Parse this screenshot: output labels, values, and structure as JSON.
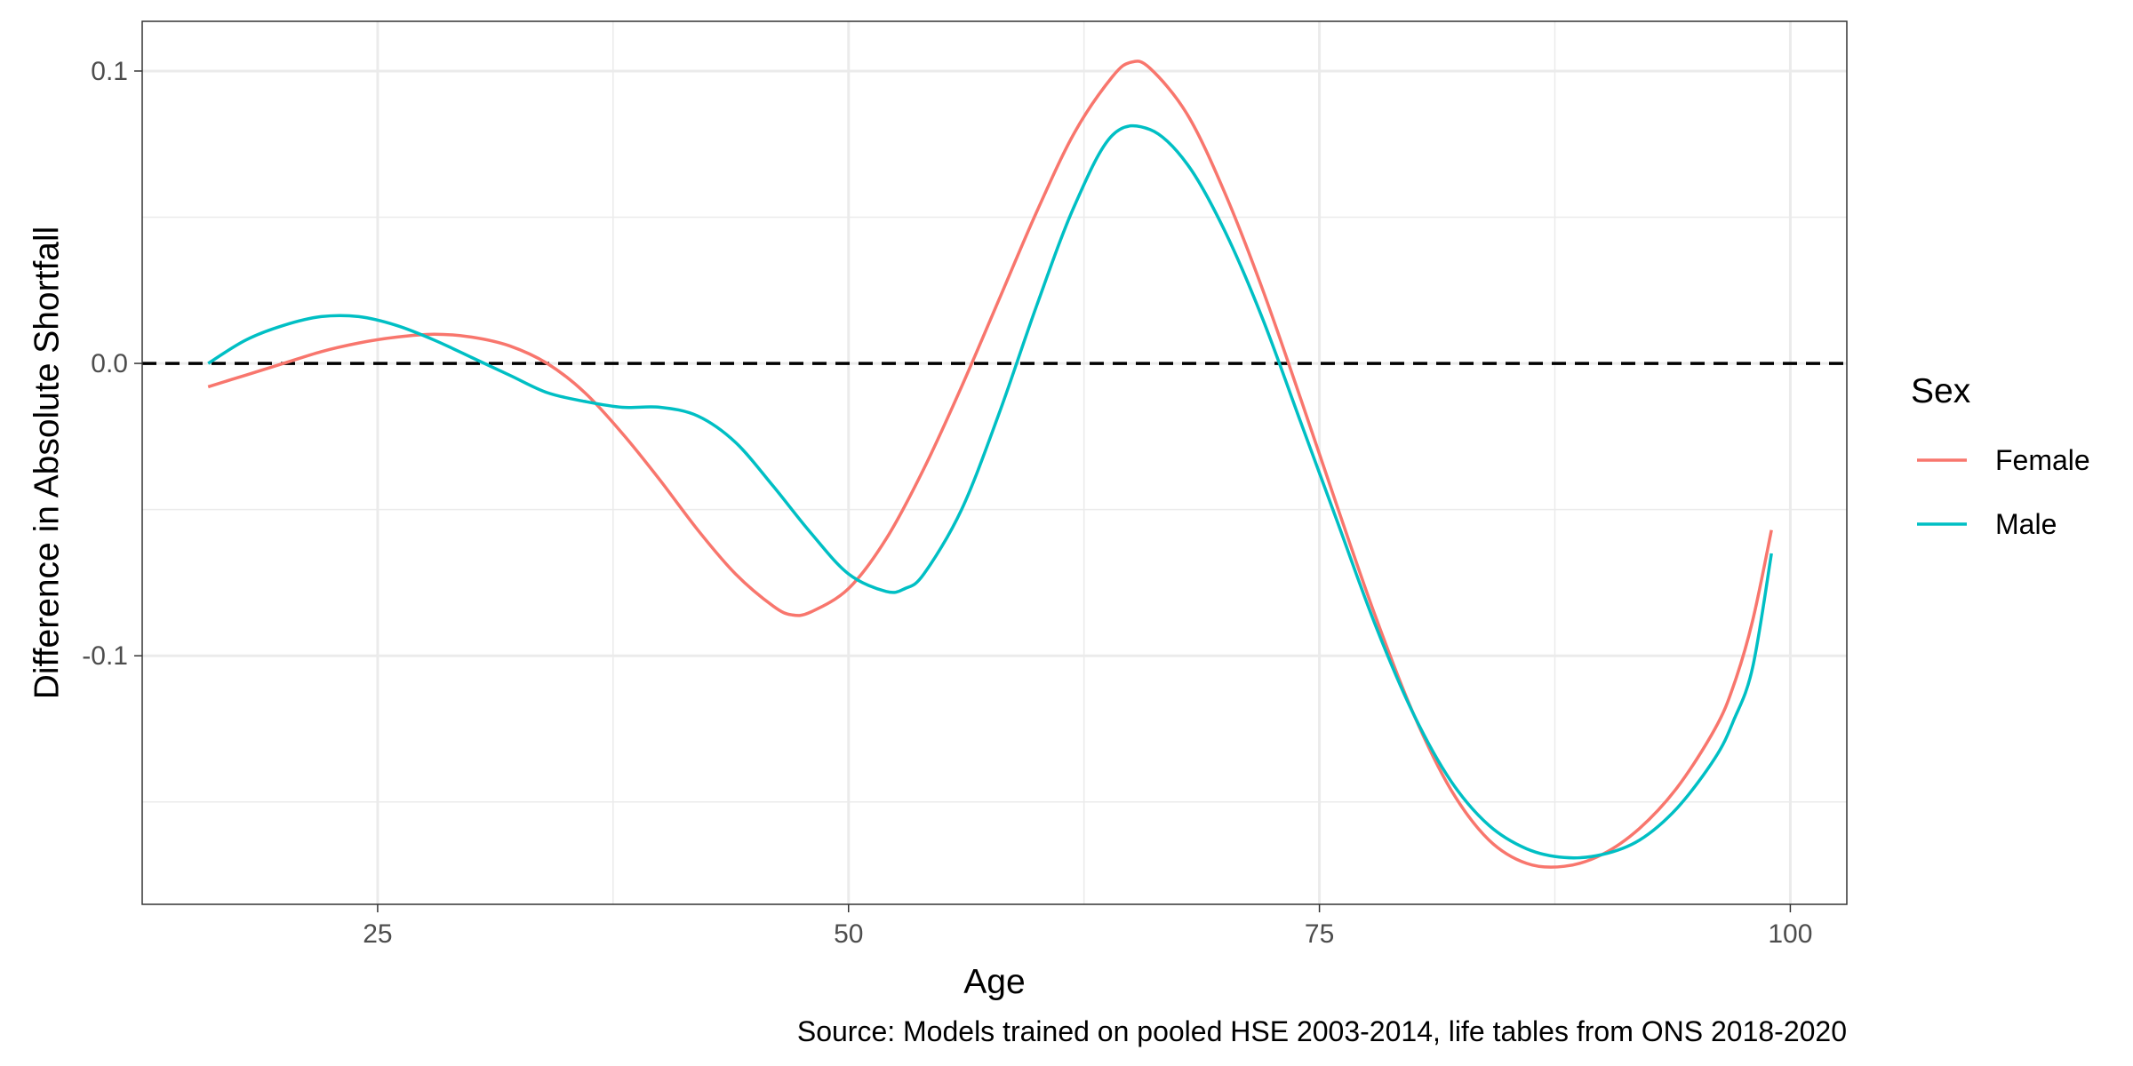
{
  "chart_data": {
    "type": "line",
    "xlabel": "Age",
    "ylabel": "Difference in Absolute Shortfall",
    "caption": "Source: Models trained on pooled HSE 2003-2014, life tables from ONS 2018-2020",
    "xlim": [
      12.5,
      103
    ],
    "ylim": [
      -0.185,
      0.117
    ],
    "x_ticks": [
      25,
      50,
      75,
      100
    ],
    "x_tick_labels": [
      "25",
      "50",
      "75",
      "100"
    ],
    "x_minor_ticks": [
      37.5,
      62.5,
      87.5
    ],
    "y_ticks": [
      -0.1,
      0.0,
      0.1
    ],
    "y_tick_labels": [
      "-0.1",
      "0.0",
      "0.1"
    ],
    "y_minor_ticks": [
      -0.15,
      -0.05,
      0.05
    ],
    "grid": true,
    "reference_line": {
      "y": 0,
      "style": "dashed",
      "color": "#000000"
    },
    "legend": {
      "title": "Sex",
      "position": "right"
    },
    "series": [
      {
        "name": "Female",
        "color": "#F8766D",
        "x": [
          16,
          18,
          20,
          22,
          24,
          26,
          28,
          30,
          32,
          34,
          36,
          38,
          40,
          42,
          44,
          46,
          47,
          48,
          50,
          52,
          54,
          56,
          58,
          60,
          62,
          64,
          65,
          66,
          68,
          70,
          72,
          74,
          76,
          78,
          80,
          82,
          84,
          86,
          88,
          90,
          92,
          94,
          96,
          97,
          98,
          99
        ],
        "y": [
          -0.008,
          -0.004,
          0.0,
          0.004,
          0.007,
          0.009,
          0.01,
          0.009,
          0.006,
          0.0,
          -0.01,
          -0.024,
          -0.04,
          -0.057,
          -0.072,
          -0.083,
          -0.086,
          -0.085,
          -0.077,
          -0.06,
          -0.036,
          -0.008,
          0.022,
          0.052,
          0.079,
          0.098,
          0.103,
          0.101,
          0.085,
          0.058,
          0.025,
          -0.012,
          -0.05,
          -0.087,
          -0.12,
          -0.146,
          -0.163,
          -0.171,
          -0.172,
          -0.168,
          -0.159,
          -0.145,
          -0.125,
          -0.11,
          -0.088,
          -0.057
        ]
      },
      {
        "name": "Male",
        "color": "#00BFC4",
        "x": [
          16,
          18,
          20,
          22,
          24,
          26,
          28,
          30,
          32,
          34,
          36,
          38,
          40,
          42,
          44,
          46,
          48,
          50,
          52,
          53,
          54,
          56,
          58,
          60,
          62,
          64,
          66,
          68,
          70,
          72,
          74,
          76,
          78,
          80,
          82,
          84,
          86,
          88,
          90,
          92,
          94,
          96,
          97,
          98,
          99
        ],
        "y": [
          0.0,
          0.008,
          0.013,
          0.016,
          0.016,
          0.013,
          0.008,
          0.002,
          -0.004,
          -0.01,
          -0.013,
          -0.015,
          -0.015,
          -0.018,
          -0.027,
          -0.042,
          -0.058,
          -0.072,
          -0.078,
          -0.077,
          -0.072,
          -0.05,
          -0.017,
          0.02,
          0.054,
          0.078,
          0.08,
          0.068,
          0.045,
          0.015,
          -0.02,
          -0.055,
          -0.09,
          -0.12,
          -0.143,
          -0.158,
          -0.166,
          -0.169,
          -0.168,
          -0.163,
          -0.152,
          -0.135,
          -0.122,
          -0.104,
          -0.065
        ]
      }
    ]
  }
}
